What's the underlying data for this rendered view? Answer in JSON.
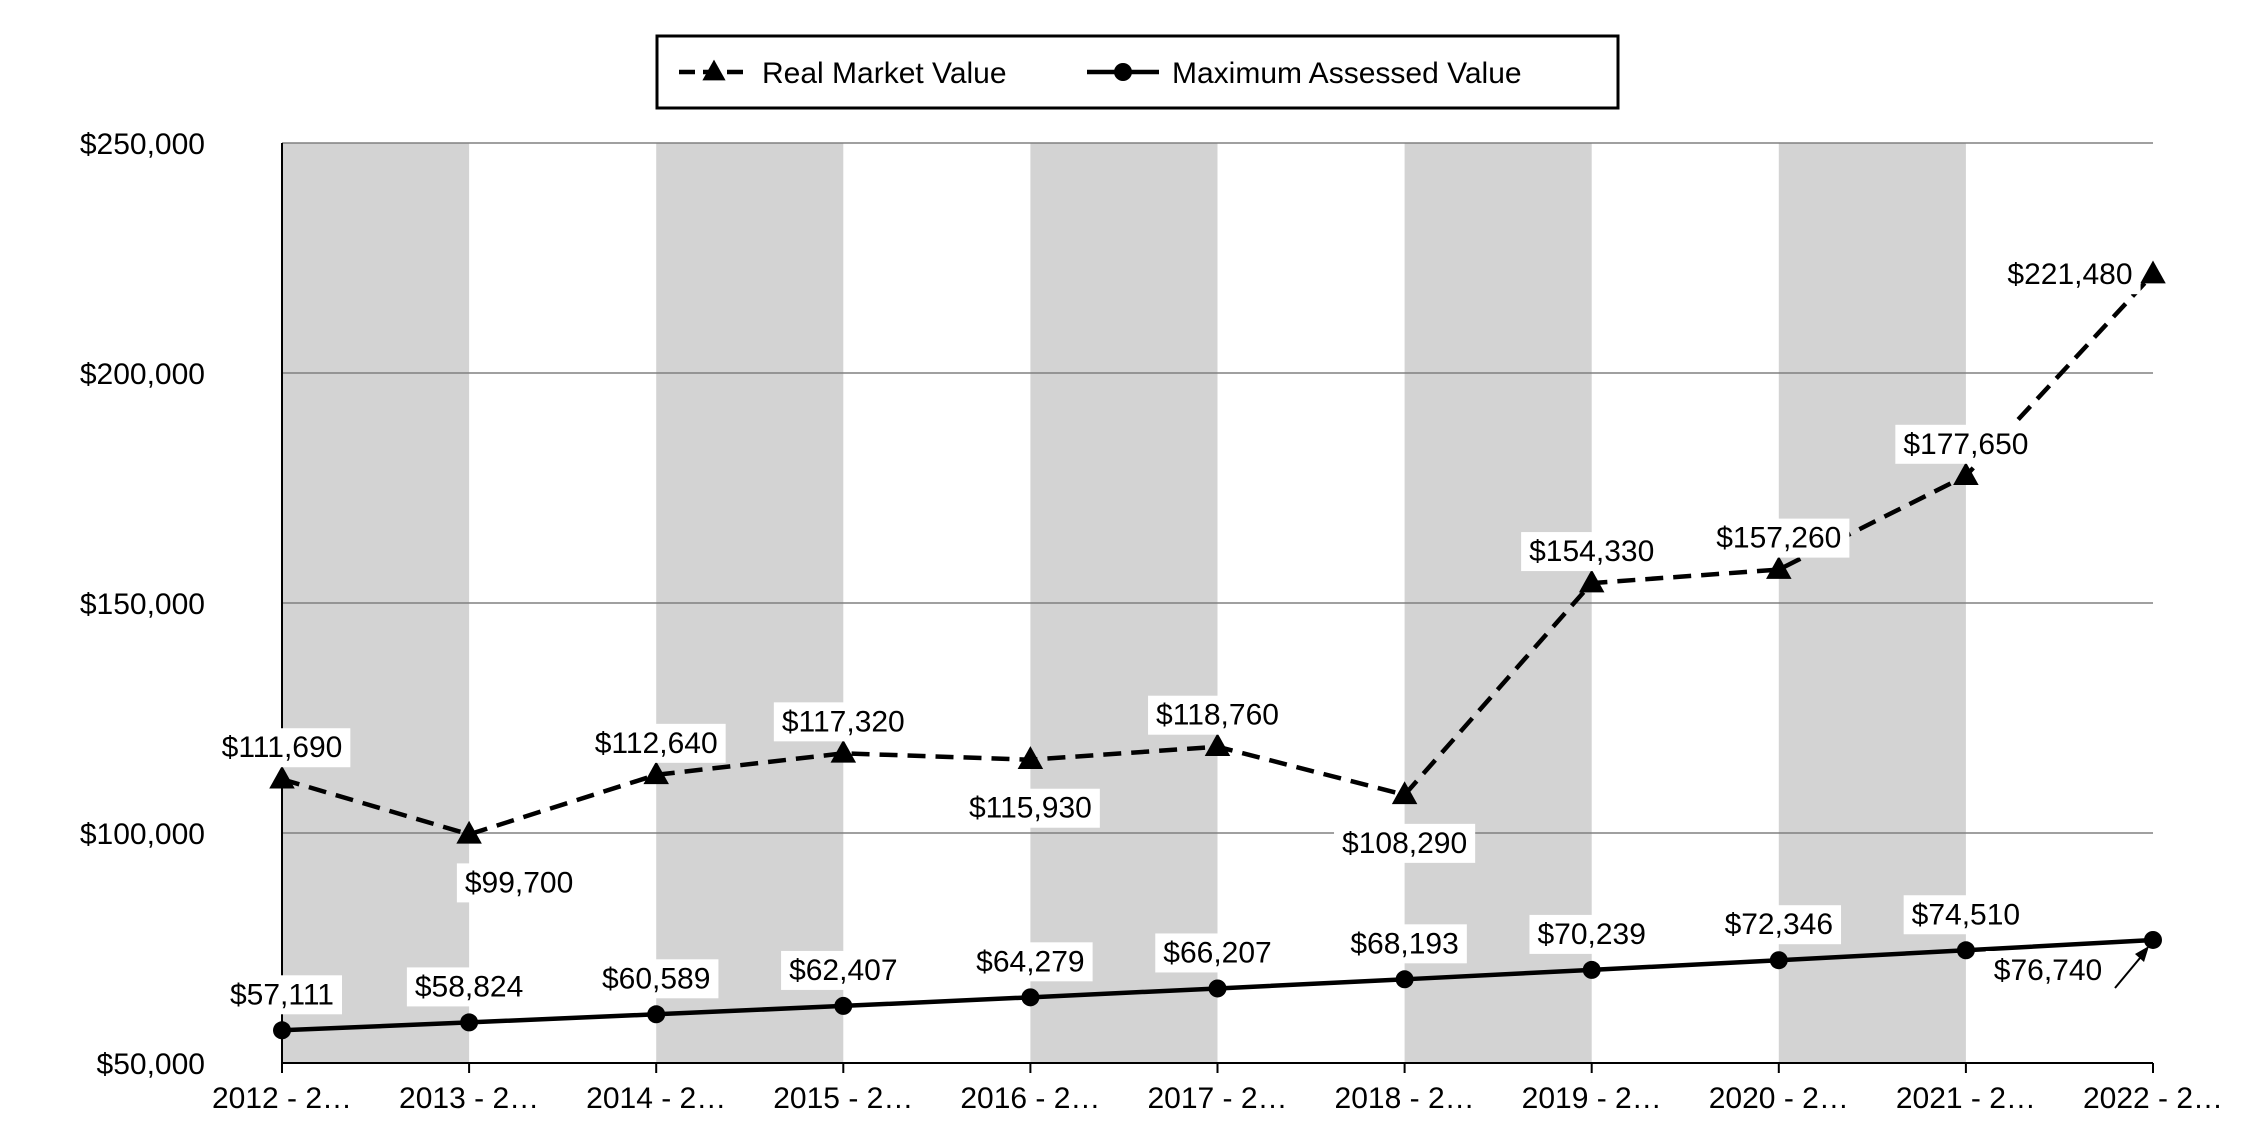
{
  "chart_data": {
    "type": "line",
    "title": "",
    "xlabel": "",
    "ylabel": "",
    "ylim": [
      50000,
      250000
    ],
    "yticks": [
      50000,
      100000,
      150000,
      200000,
      250000
    ],
    "ytick_labels": [
      "$50,000",
      "$100,000",
      "$150,000",
      "$200,000",
      "$250,000"
    ],
    "categories": [
      "2012 - 2…",
      "2013 - 2…",
      "2014 - 2…",
      "2015 - 2…",
      "2016 - 2…",
      "2017 - 2…",
      "2018 - 2…",
      "2019 - 2…",
      "2020 - 2…",
      "2021 - 2…",
      "2022 - 2…"
    ],
    "grid": true,
    "alternating_bands": true,
    "legend_position": "top-center",
    "series": [
      {
        "name": "Real Market Value",
        "style": "dashed",
        "marker": "triangle",
        "values": [
          111690,
          99700,
          112640,
          117320,
          115930,
          118760,
          108290,
          154330,
          157260,
          177650,
          221480
        ],
        "labels": [
          "$111,690",
          "$99,700",
          "$112,640",
          "$117,320",
          "$115,930",
          "$118,760",
          "$108,290",
          "$154,330",
          "$157,260",
          "$177,650",
          "$221,480"
        ]
      },
      {
        "name": "Maximum Assessed Value",
        "style": "solid",
        "marker": "circle",
        "values": [
          57111,
          58824,
          60589,
          62407,
          64279,
          66207,
          68193,
          70239,
          72346,
          74510,
          76740
        ],
        "labels": [
          "$57,111",
          "$58,824",
          "$60,589",
          "$62,407",
          "$64,279",
          "$66,207",
          "$68,193",
          "$70,239",
          "$72,346",
          "$74,510",
          "$76,740"
        ]
      }
    ],
    "colors": {
      "line": "#000000",
      "band": "#d3d3d3",
      "grid": "#808080",
      "axis": "#000000"
    }
  }
}
